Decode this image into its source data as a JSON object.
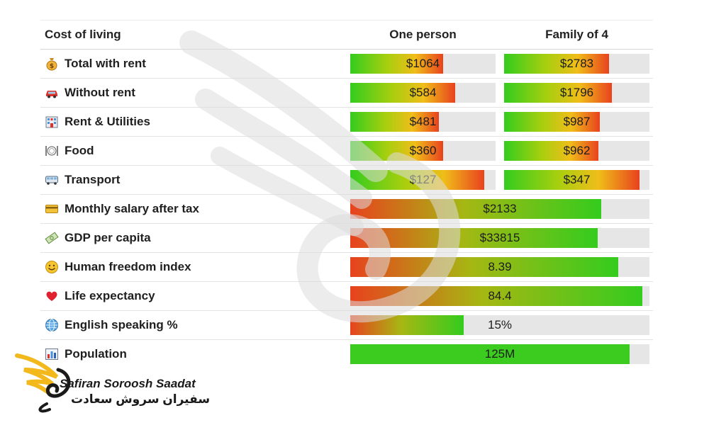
{
  "header": {
    "label": "Cost of living",
    "col1": "One person",
    "col2": "Family of 4"
  },
  "chart_data": {
    "type": "table",
    "cost_rows": [
      {
        "label": "Total with rent",
        "icon": "money-bag-icon",
        "one_person": "$1064",
        "one_person_fill": 0.64,
        "family": "$2783",
        "family_fill": 0.72
      },
      {
        "label": "Without rent",
        "icon": "car-icon",
        "one_person": "$584",
        "one_person_fill": 0.72,
        "family": "$1796",
        "family_fill": 0.74
      },
      {
        "label": "Rent & Utilities",
        "icon": "hotel-icon",
        "one_person": "$481",
        "one_person_fill": 0.61,
        "family": "$987",
        "family_fill": 0.66
      },
      {
        "label": "Food",
        "icon": "plate-icon",
        "one_person": "$360",
        "one_person_fill": 0.64,
        "family": "$962",
        "family_fill": 0.65
      },
      {
        "label": "Transport",
        "icon": "bus-icon",
        "one_person": "$127",
        "one_person_fill": 0.92,
        "family": "$347",
        "family_fill": 0.93
      }
    ],
    "indicator_rows": [
      {
        "label": "Monthly salary after tax",
        "icon": "credit-card-icon",
        "value": "$2133",
        "fill": 0.839
      },
      {
        "label": "GDP per capita",
        "icon": "money-icon",
        "value": "$33815",
        "fill": 0.827
      },
      {
        "label": "Human freedom index",
        "icon": "smiley-icon",
        "value": "8.39",
        "fill": 0.896
      },
      {
        "label": "Life expectancy",
        "icon": "heart-icon",
        "value": "84.4",
        "fill": 0.976
      },
      {
        "label": "English speaking %",
        "icon": "globe-icon",
        "value": "15%",
        "fill": 0.379
      },
      {
        "label": "Population",
        "icon": "bar-chart-icon",
        "value": "125M",
        "fill": 0.934
      }
    ]
  },
  "logo": {
    "name_en": "Safiran Soroosh Saadat",
    "name_fa": "سفیران سروش سعادت"
  }
}
